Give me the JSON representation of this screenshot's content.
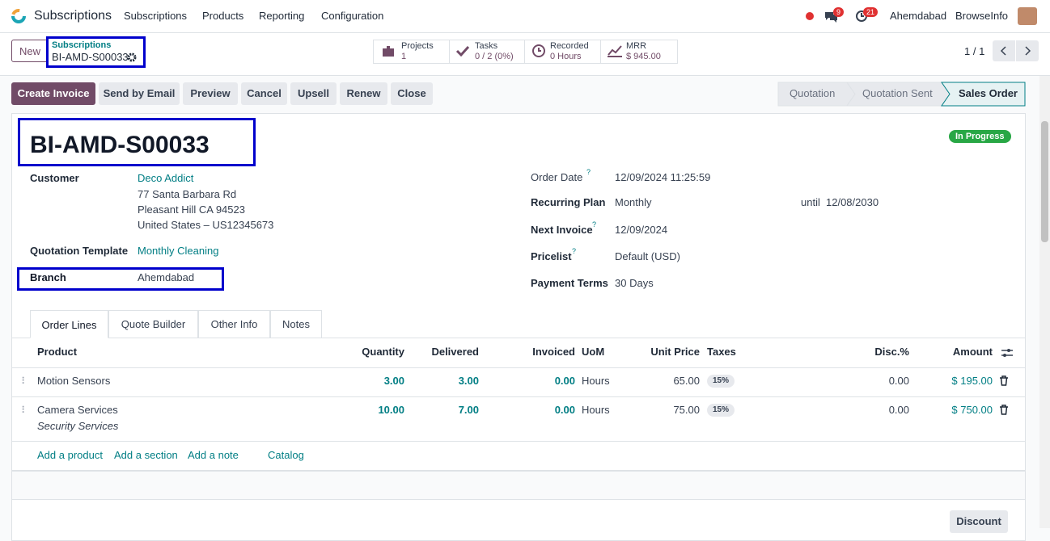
{
  "navbar": {
    "app_name": "Subscriptions",
    "menu": [
      "Subscriptions",
      "Products",
      "Reporting",
      "Configuration"
    ],
    "message_count": "9",
    "activity_count": "21",
    "company": "Ahemdabad",
    "user": "BrowseInfo"
  },
  "control_panel": {
    "new_button": "New",
    "breadcrumb": "Subscriptions",
    "record_name": "BI-AMD-S00033",
    "smart_buttons": [
      {
        "label": "Projects",
        "value": "1"
      },
      {
        "label": "Tasks",
        "value": "0 / 2 (0%)"
      },
      {
        "label": "Recorded",
        "value": "0 Hours"
      },
      {
        "label": "MRR",
        "value": "$ 945.00"
      }
    ],
    "pager": "1 / 1"
  },
  "actions": [
    "Create Invoice",
    "Send by Email",
    "Preview",
    "Cancel",
    "Upsell",
    "Renew",
    "Close"
  ],
  "status_bar": [
    "Quotation",
    "Quotation Sent",
    "Sales Order"
  ],
  "form": {
    "title": "BI-AMD-S00033",
    "state": "In Progress",
    "help_mark": "?",
    "left_fields": [
      {
        "label": "Customer",
        "lines": [
          "Deco Addict",
          "77 Santa Barbara Rd",
          "Pleasant Hill CA 94523",
          "United States – US12345673"
        ]
      },
      {
        "label": "Quotation Template",
        "lines": [
          "Monthly Cleaning"
        ]
      },
      {
        "label": "Branch",
        "lines": [
          "Ahemdabad"
        ]
      }
    ],
    "right_fields": [
      {
        "label": "Order Date",
        "value": "12/09/2024 11:25:59"
      },
      {
        "label": "Recurring Plan",
        "value": "Monthly",
        "until_label": "until",
        "until_date": "12/08/2030"
      },
      {
        "label": "Next Invoice",
        "value": "12/09/2024"
      },
      {
        "label": "Pricelist",
        "value": "Default (USD)"
      },
      {
        "label": "Payment Terms",
        "value": "30 Days"
      }
    ],
    "tabs": [
      "Order Lines",
      "Quote Builder",
      "Other Info",
      "Notes"
    ],
    "order_lines": {
      "columns": [
        "Product",
        "Quantity",
        "Delivered",
        "Invoiced",
        "UoM",
        "Unit Price",
        "Taxes",
        "Disc.%",
        "Amount"
      ],
      "rows": [
        {
          "cells": [
            "Motion Sensors",
            "3.00",
            "3.00",
            "0.00",
            "Hours",
            "65.00",
            "15%",
            "0.00",
            "$ 195.00"
          ]
        },
        {
          "cells": [
            "Camera Services",
            "10.00",
            "7.00",
            "0.00",
            "Hours",
            "75.00",
            "15%",
            "0.00",
            "$ 750.00"
          ],
          "note": "Security Services"
        }
      ],
      "add_links": [
        "Add a product",
        "Add a section",
        "Add a note",
        "Catalog"
      ]
    },
    "discount_button": "Discount"
  }
}
